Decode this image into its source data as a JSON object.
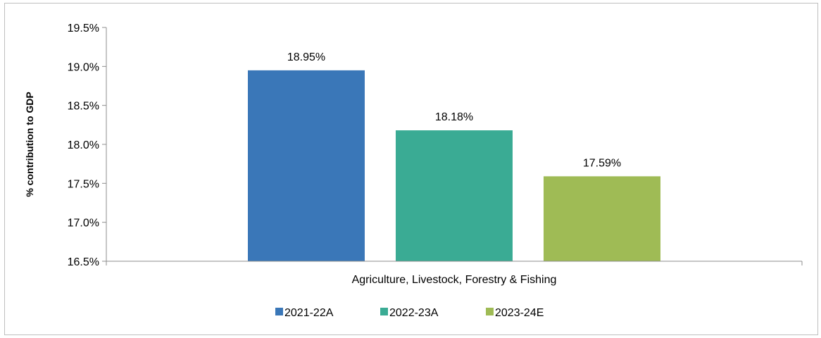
{
  "chart_data": {
    "type": "bar",
    "categories": [
      "Agriculture, Livestock, Forestry & Fishing"
    ],
    "series": [
      {
        "name": "2021-22A",
        "values": [
          18.95
        ],
        "label": "18.95%",
        "color": "#3a77b8"
      },
      {
        "name": "2022-23A",
        "values": [
          18.18
        ],
        "label": "18.18%",
        "color": "#3aab94"
      },
      {
        "name": "2023-24E",
        "values": [
          17.59
        ],
        "label": "17.59%",
        "color": "#9fbb55"
      }
    ],
    "title": "",
    "xlabel": "",
    "ylabel": "% contribution to GDP",
    "ylim": [
      16.5,
      19.5
    ],
    "yticks": [
      16.5,
      17.0,
      17.5,
      18.0,
      18.5,
      19.0,
      19.5
    ],
    "ytick_labels": [
      "16.5%",
      "17.0%",
      "17.5%",
      "18.0%",
      "18.5%",
      "19.0%",
      "19.5%"
    ],
    "grid": false,
    "legend_position": "bottom"
  }
}
